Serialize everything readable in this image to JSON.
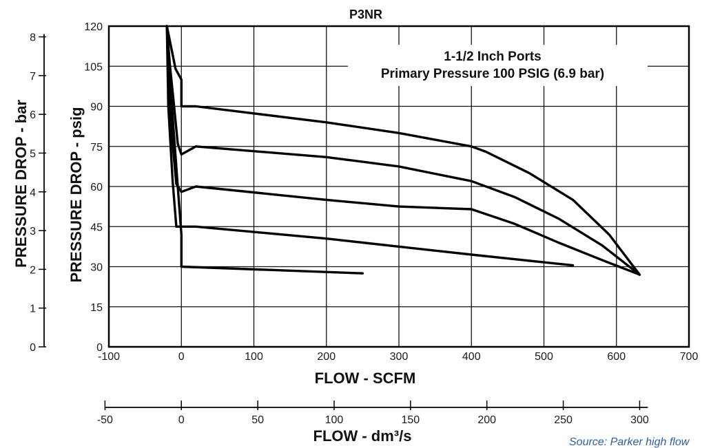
{
  "chart_data": {
    "type": "line",
    "title": "P3NR",
    "annotation": [
      "1-1/2 Inch Ports",
      "Primary Pressure 100 PSIG (6.9 bar)"
    ],
    "xlabel": "FLOW - SCFM",
    "ylabel": "PRESSURE DROP - psig",
    "xlim": [
      -100,
      700
    ],
    "ylim": [
      0,
      120
    ],
    "x_ticks": [
      -100,
      0,
      100,
      200,
      300,
      400,
      500,
      600,
      700
    ],
    "y_ticks": [
      0,
      15,
      30,
      45,
      60,
      75,
      90,
      105,
      120
    ],
    "grid": true,
    "secondary_x": {
      "label": "FLOW - dm³/s",
      "ticks": [
        -50,
        0,
        50,
        100,
        150,
        200,
        250,
        300
      ]
    },
    "secondary_y": {
      "label": "PRESSURE DROP - bar",
      "ticks": [
        0,
        1,
        2,
        3,
        4,
        5,
        6,
        7,
        8
      ]
    },
    "series": [
      {
        "values": [
          [
            -20,
            120
          ],
          [
            -12,
            86
          ],
          [
            -5,
            60
          ],
          [
            0,
            42
          ],
          [
            0,
            30
          ],
          [
            250,
            27.5
          ]
        ]
      },
      {
        "values": [
          [
            -20,
            120
          ],
          [
            -18,
            90
          ],
          [
            -12,
            62
          ],
          [
            -7,
            45
          ],
          [
            20,
            45
          ],
          [
            200,
            40.5
          ],
          [
            400,
            34.5
          ],
          [
            540,
            30.5
          ]
        ]
      },
      {
        "values": [
          [
            -20,
            120
          ],
          [
            -17,
            100
          ],
          [
            -12,
            76
          ],
          [
            -7,
            61
          ],
          [
            0,
            58
          ],
          [
            20,
            60
          ],
          [
            200,
            55
          ],
          [
            300,
            52.5
          ],
          [
            400,
            51.5
          ],
          [
            460,
            46
          ],
          [
            520,
            39
          ],
          [
            580,
            32.5
          ],
          [
            632,
            27
          ]
        ]
      },
      {
        "values": [
          [
            -20,
            120
          ],
          [
            -16,
            106
          ],
          [
            -10,
            90
          ],
          [
            -5,
            76
          ],
          [
            0,
            72
          ],
          [
            20,
            75
          ],
          [
            200,
            71
          ],
          [
            300,
            67.5
          ],
          [
            400,
            62
          ],
          [
            460,
            56
          ],
          [
            520,
            48
          ],
          [
            580,
            38
          ],
          [
            632,
            27
          ]
        ]
      },
      {
        "values": [
          [
            -20,
            120
          ],
          [
            -8,
            104
          ],
          [
            0,
            100
          ],
          [
            0,
            90
          ],
          [
            20,
            90
          ],
          [
            200,
            84
          ],
          [
            300,
            80
          ],
          [
            400,
            75
          ],
          [
            420,
            73
          ],
          [
            480,
            65
          ],
          [
            540,
            55
          ],
          [
            590,
            42
          ],
          [
            632,
            27
          ]
        ]
      }
    ]
  },
  "source_note": "Source: Parker high flow"
}
